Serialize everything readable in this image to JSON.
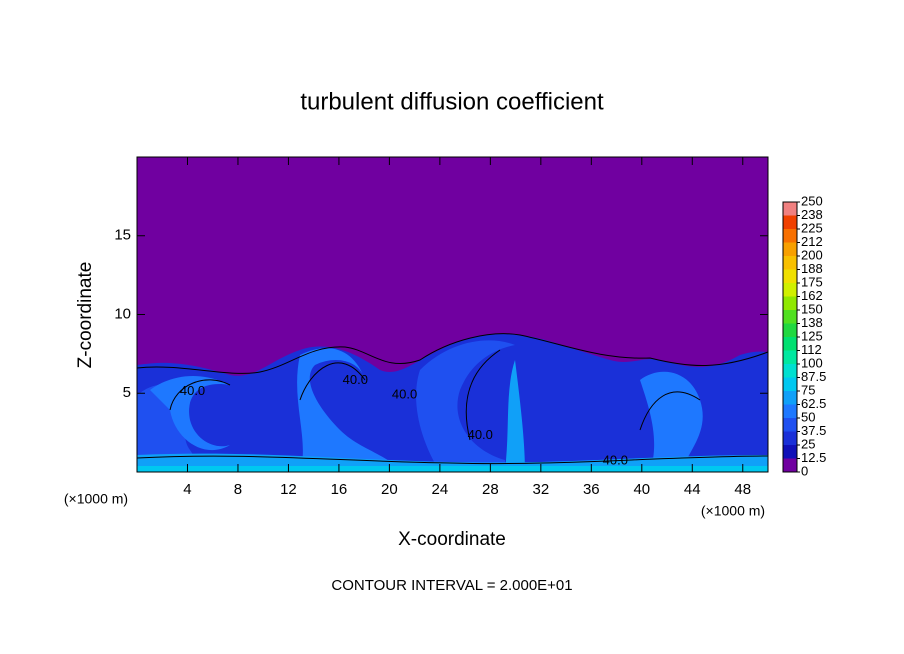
{
  "chart_data": {
    "type": "contour",
    "title": "turbulent diffusion coefficient",
    "xlabel": "X-coordinate",
    "ylabel": "Z-coordinate",
    "xunit": "(×1000 m)",
    "yunit": "(×1000 m)",
    "footer": "CONTOUR INTERVAL = 2.000E+01",
    "xlim": [
      0,
      50
    ],
    "ylim": [
      0,
      20
    ],
    "xticks": [
      4,
      8,
      12,
      16,
      20,
      24,
      28,
      32,
      36,
      40,
      44,
      48
    ],
    "yticks": [
      5,
      10,
      15
    ],
    "background_color": "#7000a0",
    "annotations": [
      {
        "text": "40.0",
        "x": 4.4,
        "y": 5.1
      },
      {
        "text": "40.0",
        "x": 17.3,
        "y": 5.8
      },
      {
        "text": "40.0",
        "x": 21.2,
        "y": 4.9
      },
      {
        "text": "40.0",
        "x": 27.2,
        "y": 2.3
      },
      {
        "text": "40.0",
        "x": 37.9,
        "y": 0.7
      }
    ],
    "colorbar": {
      "ticks": [
        0,
        12.5,
        25,
        37.5,
        50,
        62.5,
        75,
        87.5,
        100,
        {
          "value": 112.5,
          "label": "112"
        },
        125,
        {
          "value": 137.5,
          "label": "138"
        },
        150,
        {
          "value": 162.5,
          "label": "162"
        },
        175,
        {
          "value": 187.5,
          "label": "188"
        },
        200,
        {
          "value": 212.5,
          "label": "212"
        },
        225,
        {
          "value": 237.5,
          "label": "238"
        },
        250
      ],
      "colors": [
        "#7000a0",
        "#1010b8",
        "#1a30d8",
        "#1f50f0",
        "#1e78ff",
        "#10a0f8",
        "#00c8f0",
        "#00e0d0",
        "#00e8a0",
        "#00e070",
        "#20d840",
        "#50e020",
        "#90e800",
        "#d0f000",
        "#f0e000",
        "#f8c000",
        "#f8a000",
        "#f87000",
        "#f04000",
        "#f08080"
      ]
    }
  }
}
